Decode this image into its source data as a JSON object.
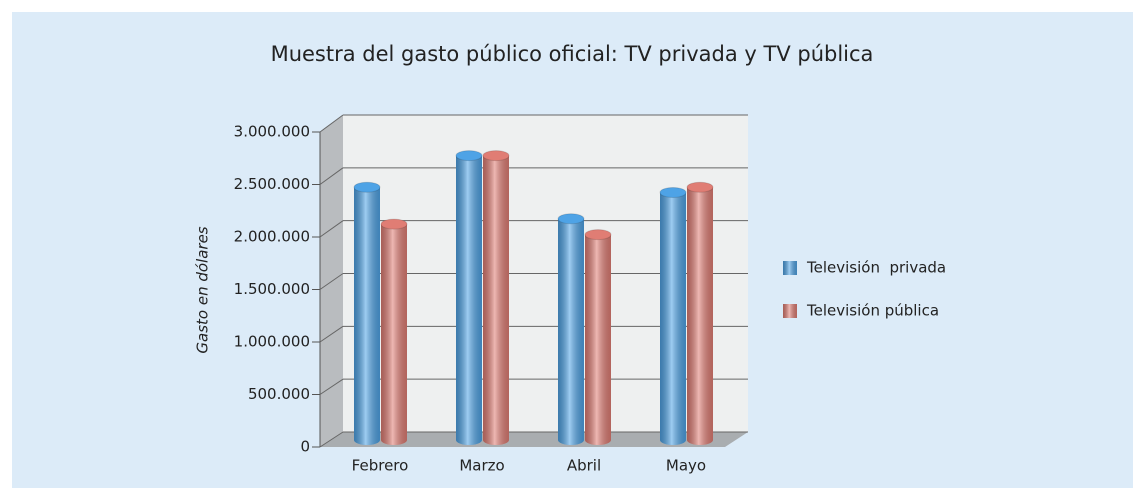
{
  "chart_data": {
    "type": "bar3d",
    "title": "Muestra del gasto público oficial: TV privada y TV pública",
    "y_label": "Gasto en dólares",
    "categories": [
      "Febrero",
      "Marzo",
      "Abril",
      "Mayo"
    ],
    "series": [
      {
        "name": "Televisión  privada",
        "color": "#4ea3e6",
        "values": [
          2400000,
          2700000,
          2100000,
          2350000
        ]
      },
      {
        "name": "Televisión pública",
        "color": "#e07d74",
        "values": [
          2050000,
          2700000,
          1950000,
          2400000
        ]
      }
    ],
    "ylim": [
      0,
      3000000
    ],
    "yticks": [
      0,
      {
        "value": 500000,
        "label": "500.000"
      },
      {
        "value": 1000000,
        "label": "1.000.000"
      },
      {
        "value": 1500000,
        "label": "1.500.000"
      },
      {
        "value": 2000000,
        "label": "2.000.000"
      },
      {
        "value": 2500000,
        "label": "2.500.000"
      },
      {
        "value": 3000000,
        "label": "3.000.000"
      }
    ],
    "grid": true,
    "legend": "right"
  }
}
